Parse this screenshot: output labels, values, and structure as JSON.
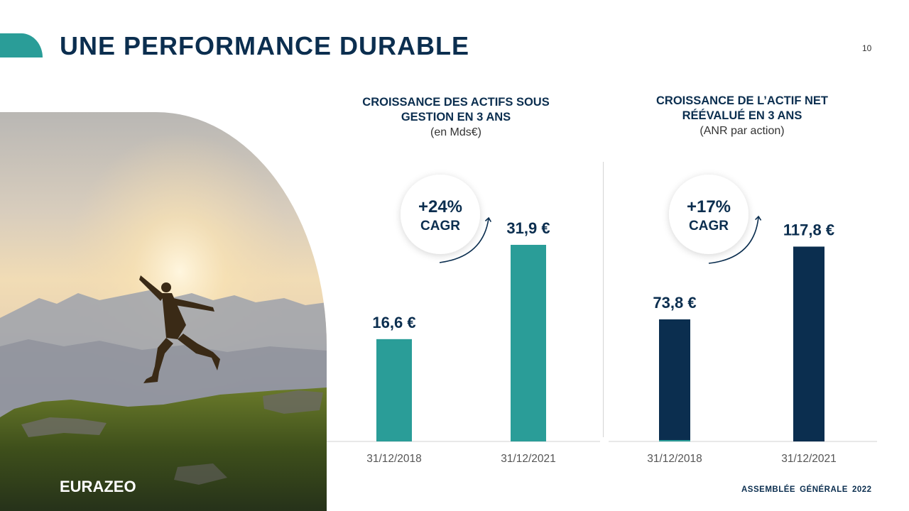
{
  "header": {
    "title": "UNE PERFORMANCE DURABLE",
    "page_number": "10"
  },
  "brand": {
    "logo": "EURAZEO",
    "accent": "#2a9d98",
    "navy": "#0b2e4f"
  },
  "footer": {
    "words": [
      "ASSEMBLÉE",
      "GÉNÉRALE",
      "2022"
    ]
  },
  "chart_data": [
    {
      "type": "bar",
      "title": "CROISSANCE DES ACTIFS SOUS GESTION EN 3 ANS",
      "title_lines": [
        "CROISSANCE DES ACTIFS SOUS",
        "GESTION EN 3 ANS"
      ],
      "subtitle": "(en Mds€)",
      "categories": [
        "31/12/2018",
        "31/12/2021"
      ],
      "values": [
        16.6,
        31.9
      ],
      "value_labels": [
        "16,6 €",
        "31,9 €"
      ],
      "ylim": [
        0,
        38
      ],
      "color": "#2a9d98",
      "badge": {
        "value": "+24%",
        "label": "CAGR"
      }
    },
    {
      "type": "bar",
      "title": "CROISSANCE DE L'ACTIF NET RÉÉVALUÉ EN 3 ANS",
      "title_lines": [
        "CROISSANCE DE L’ACTIF NET",
        "RÉÉVALUÉ EN 3 ANS"
      ],
      "subtitle": "(ANR par action)",
      "categories": [
        "31/12/2018",
        "31/12/2021"
      ],
      "values": [
        73.8,
        117.8
      ],
      "value_labels": [
        "73,8 €",
        "117,8 €"
      ],
      "ylim": [
        0,
        141.6
      ],
      "color": "#0b2e4f",
      "badge": {
        "value": "+17%",
        "label": "CAGR"
      }
    }
  ]
}
